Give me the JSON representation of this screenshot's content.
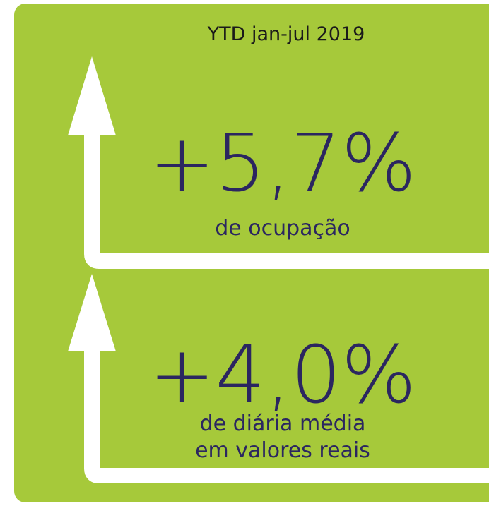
{
  "header": {
    "title": "YTD jan-jul 2019"
  },
  "metrics": [
    {
      "value": "+5,7%",
      "lines": [
        "de ocupação"
      ]
    },
    {
      "value": "+4,0%",
      "lines": [
        "de diária média",
        "em valores reais"
      ]
    }
  ]
}
